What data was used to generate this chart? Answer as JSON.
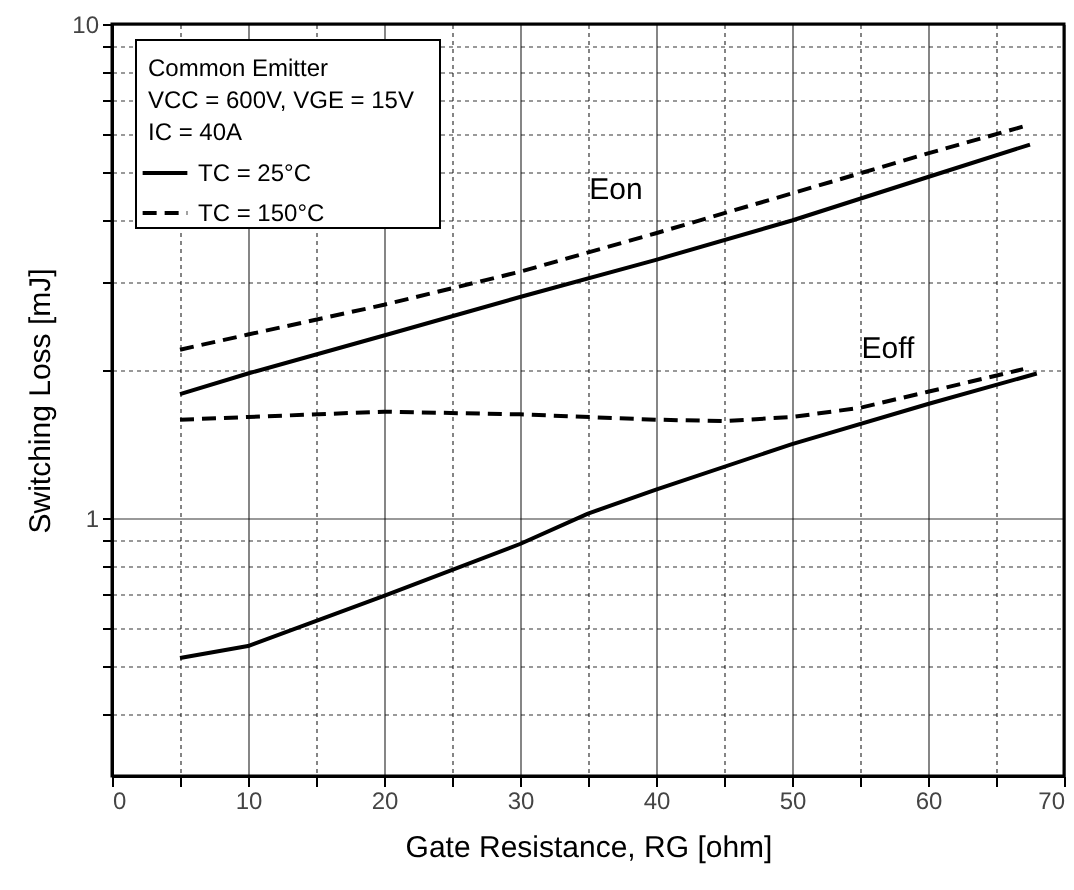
{
  "chart_data": {
    "type": "line",
    "xlabel": "Gate Resistance, RG [ohm]",
    "ylabel": "Switching Loss [mJ]",
    "xlim": [
      0,
      70
    ],
    "xticks": [
      0,
      {
        "value": 5,
        "label": null
      },
      10,
      {
        "value": 15,
        "label": null
      },
      20,
      {
        "value": 25,
        "label": null
      },
      30,
      {
        "value": 35,
        "label": null
      },
      40,
      {
        "value": 45,
        "label": null
      },
      50,
      {
        "value": 55,
        "label": null
      },
      60,
      {
        "value": 65,
        "label": null
      },
      70
    ],
    "ylim": [
      0.3,
      10
    ],
    "yticks": [
      {
        "value": 0.4,
        "label": null
      },
      {
        "value": 0.5,
        "label": null
      },
      {
        "value": 0.6,
        "label": null
      },
      {
        "value": 0.7,
        "label": null
      },
      {
        "value": 0.8,
        "label": null
      },
      {
        "value": 0.9,
        "label": null
      },
      1,
      {
        "value": 2,
        "label": null
      },
      {
        "value": 3,
        "label": null
      },
      {
        "value": 4,
        "label": null
      },
      {
        "value": 5,
        "label": null
      },
      {
        "value": 6,
        "label": null
      },
      {
        "value": 7,
        "label": null
      },
      {
        "value": 8,
        "label": null
      },
      {
        "value": 9,
        "label": null
      },
      10
    ],
    "log": "y",
    "grid": true,
    "legend": "top left",
    "marker": "none",
    "series": [
      {
        "name": "TC = 25°C",
        "color": "#000000",
        "line_style": "solid",
        "x": [
          5,
          10,
          20,
          30,
          40,
          50,
          60,
          67.5
        ],
        "values": [
          1.78,
          1.96,
          2.34,
          2.8,
          3.33,
          4.0,
          4.9,
          5.7
        ]
      },
      {
        "name": "TC = 150°C",
        "color": "#000000",
        "line_style": "dashed",
        "x": [
          5,
          10,
          20,
          30,
          40,
          50,
          60,
          67
        ],
        "values": [
          2.19,
          2.35,
          2.7,
          3.15,
          3.77,
          4.54,
          5.47,
          6.2
        ]
      },
      {
        "color": "#000000",
        "line_style": "solid",
        "x": [
          5,
          10,
          20,
          30,
          35,
          40,
          50,
          60,
          68
        ],
        "values": [
          0.52,
          0.55,
          0.695,
          0.885,
          1.02,
          1.14,
          1.41,
          1.7,
          1.96
        ]
      },
      {
        "color": "#000000",
        "line_style": "dashed",
        "x": [
          5,
          10,
          20,
          30,
          40,
          45,
          50,
          55,
          60,
          67
        ],
        "values": [
          1.58,
          1.6,
          1.64,
          1.62,
          1.58,
          1.57,
          1.6,
          1.67,
          1.8,
          2.0
        ]
      }
    ],
    "annotations": [
      "Common Emitter",
      "VCC = 600V,  VGE = 15V",
      "IC = 40A",
      {
        "text": "Eon",
        "x": 40,
        "y": 3.77
      },
      {
        "text": "Eoff",
        "x": 60,
        "y": 1.8
      }
    ]
  }
}
